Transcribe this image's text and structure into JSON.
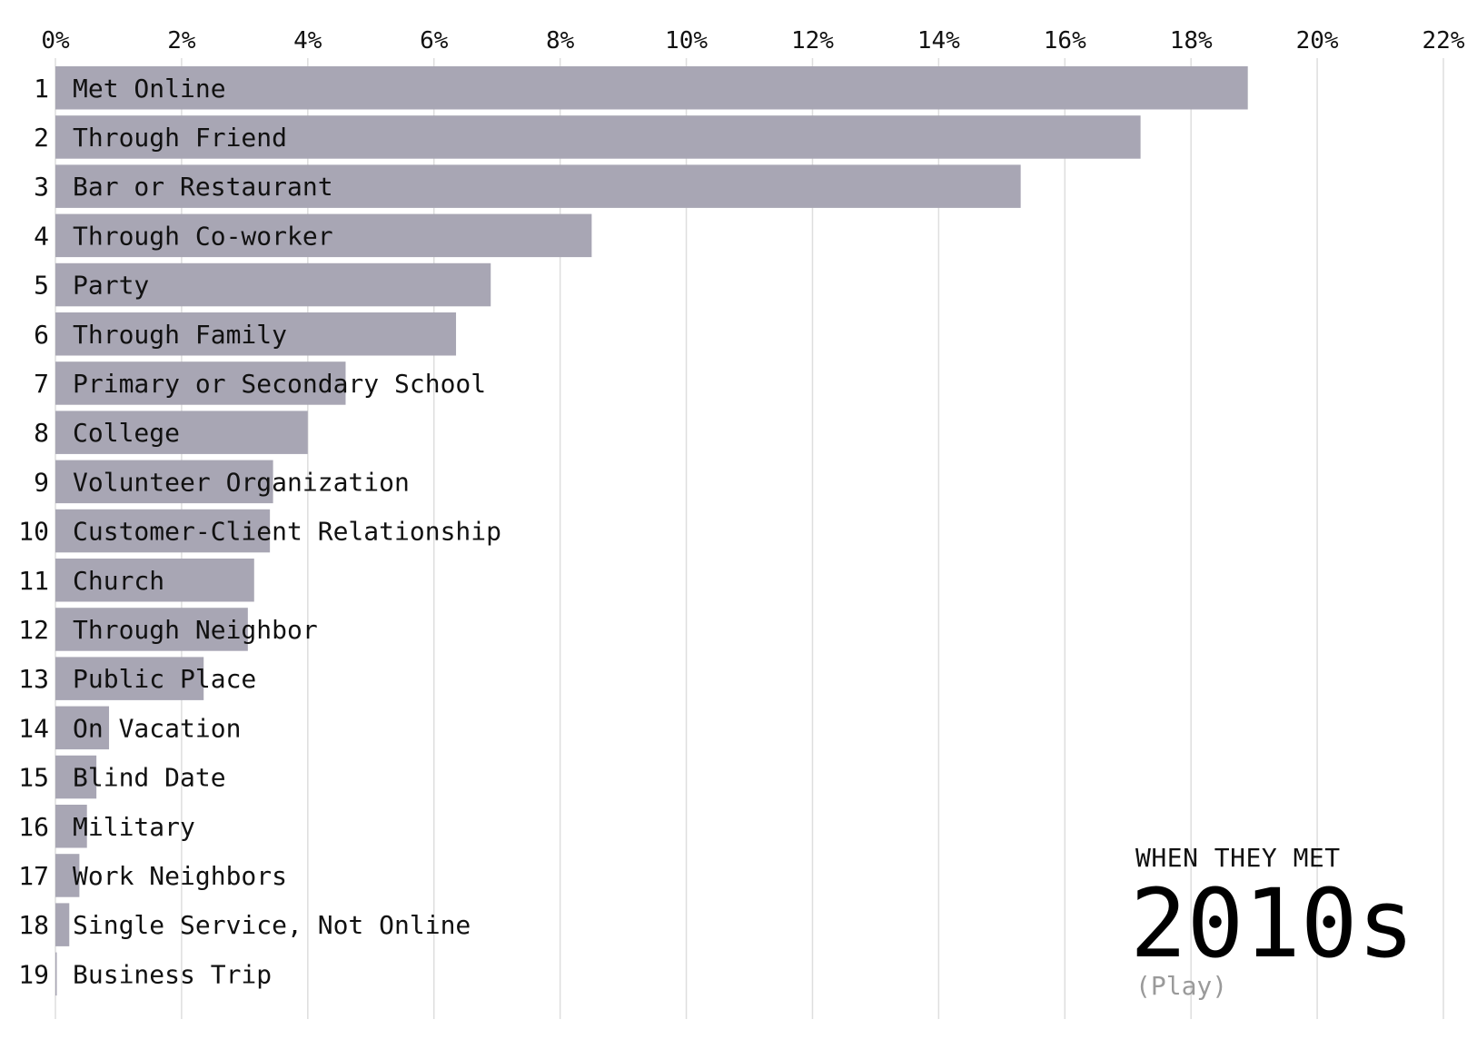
{
  "chart_data": {
    "type": "bar",
    "orientation": "horizontal",
    "x_ticks": [
      "0%",
      "2%",
      "4%",
      "6%",
      "8%",
      "10%",
      "12%",
      "14%",
      "16%",
      "18%",
      "20%",
      "22%"
    ],
    "xlim": [
      0,
      22
    ],
    "grid": true,
    "bar_color": "#a8a6b4",
    "ranks": [
      "1",
      "2",
      "3",
      "4",
      "5",
      "6",
      "7",
      "8",
      "9",
      "10",
      "11",
      "12",
      "13",
      "14",
      "15",
      "16",
      "17",
      "18",
      "19"
    ],
    "categories": [
      "Met Online",
      "Through Friend",
      "Bar or Restaurant",
      "Through Co-worker",
      "Party",
      "Through Family",
      "Primary or Secondary School",
      "College",
      "Volunteer Organization",
      "Customer-Client Relationship",
      "Church",
      "Through Neighbor",
      "Public Place",
      "On Vacation",
      "Blind Date",
      "Military",
      "Work Neighbors",
      "Single Service, Not Online",
      "Business Trip"
    ],
    "values": [
      18.9,
      17.2,
      15.3,
      8.5,
      6.9,
      6.35,
      4.6,
      4.0,
      3.45,
      3.4,
      3.15,
      3.05,
      2.35,
      0.85,
      0.65,
      0.5,
      0.38,
      0.22,
      0.02
    ]
  },
  "overlay": {
    "caption": "WHEN THEY MET",
    "era": "2010s",
    "play_label": "(Play)"
  }
}
